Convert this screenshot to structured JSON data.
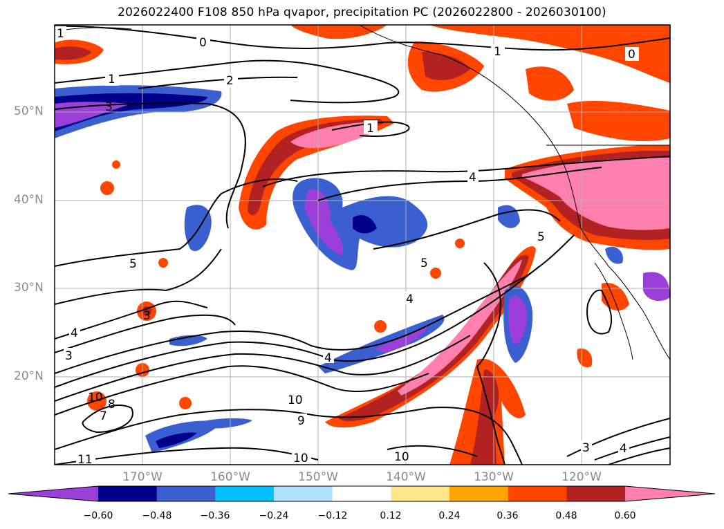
{
  "title": "2026022400 F108 850 hPa qvapor, precipitation PC (2026022800 - 2026030100)",
  "lat_labels": [
    "50°N",
    "40°N",
    "30°N",
    "20°N"
  ],
  "lon_labels": [
    "170°W",
    "160°W",
    "150°W",
    "140°W",
    "130°W",
    "120°W"
  ],
  "colorbar": {
    "colors": [
      "#9b3fd8",
      "#00008b",
      "#3a5fd0",
      "#00bfff",
      "#aee1ff",
      "#ffffff",
      "#ffe68a",
      "#ffa500",
      "#ff4500",
      "#b22222",
      "#ff7fae"
    ],
    "ticks": [
      "−0.60",
      "−0.48",
      "−0.36",
      "−0.24",
      "−0.12",
      "0.12",
      "0.24",
      "0.36",
      "0.48",
      "0.60"
    ]
  },
  "contour_labels": [
    "0",
    "0",
    "1",
    "1",
    "1",
    "1",
    "2",
    "3",
    "3",
    "3",
    "3",
    "4",
    "4",
    "4",
    "4",
    "4",
    "5",
    "5",
    "5",
    "7",
    "8",
    "9",
    "10",
    "10",
    "10",
    "10",
    "11"
  ]
}
